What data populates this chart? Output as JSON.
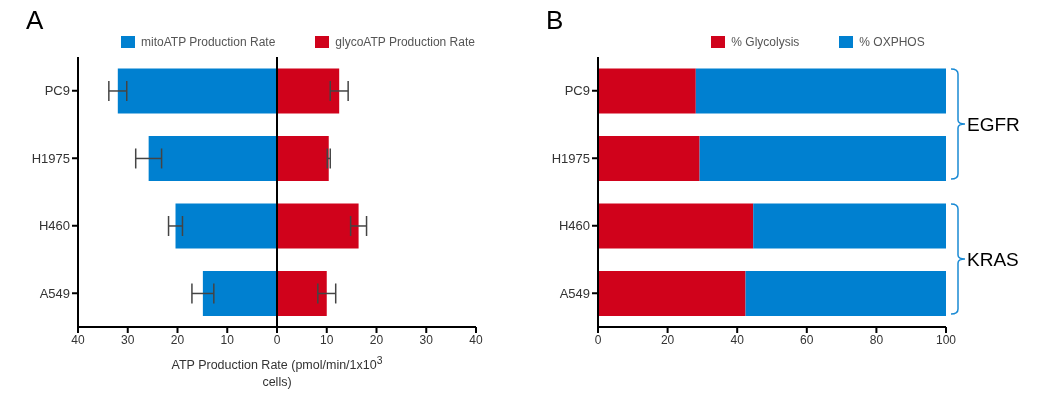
{
  "chart_data": [
    {
      "type": "bar",
      "title": "A",
      "orientation": "horizontal",
      "stacked": true,
      "categories": [
        "PC9",
        "H1975",
        "H460",
        "A549"
      ],
      "series": [
        {
          "name": "mitoATP Production Rate",
          "color": "#0080d0",
          "values": [
            -32,
            -25.8,
            -20.4,
            -14.9
          ],
          "errors": [
            1.8,
            2.6,
            1.4,
            2.2
          ]
        },
        {
          "name": "glycoATP Production Rate",
          "color": "#d0021b",
          "values": [
            12.5,
            10.4,
            16.4,
            10.0
          ],
          "errors": [
            1.8,
            0.3,
            1.6,
            1.8
          ]
        }
      ],
      "xlim": [
        -40,
        40
      ],
      "xticks": [
        {
          "value": -40,
          "label": "40"
        },
        {
          "value": -30,
          "label": "30"
        },
        {
          "value": -20,
          "label": "20"
        },
        {
          "value": -10,
          "label": "10"
        },
        0,
        10,
        20,
        30,
        40
      ],
      "xlabel": "ATP Production Rate (pmol/min/1x10$^{3}$ cells)",
      "legend": "top",
      "grid": false,
      "ref_lines": [
        {
          "axis": "x",
          "value": 0,
          "color": "#000000"
        }
      ]
    },
    {
      "type": "bar",
      "title": "B",
      "orientation": "horizontal",
      "stacked": true,
      "categories": [
        "PC9",
        "H1975",
        "H460",
        "A549"
      ],
      "series": [
        {
          "name": "% Glycolysis",
          "color": "#d0021b",
          "values": [
            28.1,
            29.2,
            44.6,
            42.4
          ]
        },
        {
          "name": "% OXPHOS",
          "color": "#0080d0",
          "values": [
            71.9,
            70.8,
            55.4,
            57.6
          ]
        }
      ],
      "xlim": [
        0,
        100
      ],
      "xticks": [
        0,
        20,
        40,
        60,
        80,
        100
      ],
      "legend": "top",
      "grid": false,
      "annotations": [
        "EGFR",
        "KRAS"
      ]
    }
  ]
}
